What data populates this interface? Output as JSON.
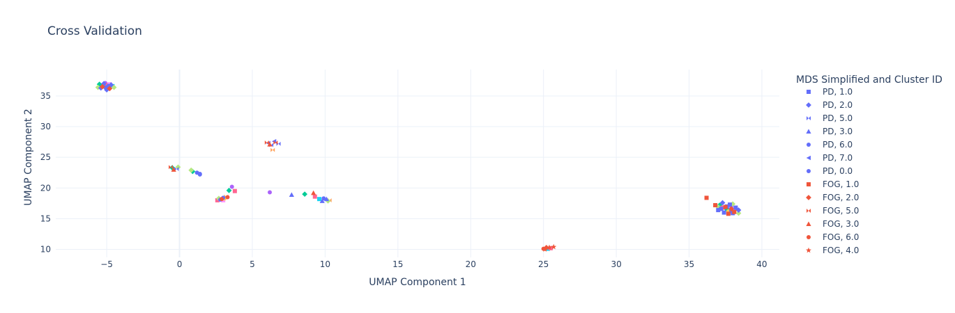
{
  "chart_data": {
    "type": "scatter",
    "title": "Cross Validation",
    "xlabel": "UMAP Component 1",
    "ylabel": "UMAP Component 2",
    "xlim": [
      -8.5,
      41.2
    ],
    "ylim": [
      8.7,
      39.3
    ],
    "xticks": [
      -5,
      0,
      5,
      10,
      15,
      20,
      25,
      30,
      35,
      40
    ],
    "yticks": [
      10,
      15,
      20,
      25,
      30,
      35
    ],
    "grid": true,
    "legend_title": "MDS Simplified and Cluster ID",
    "legend_position": "right",
    "series": [
      {
        "name": "PD, 1.0",
        "color": "#636efa",
        "symbol": "square",
        "points": [
          [
            37.2,
            16.6
          ],
          [
            37.6,
            17.0
          ],
          [
            37.9,
            16.2
          ],
          [
            38.2,
            16.8
          ],
          [
            37.4,
            16.0
          ],
          [
            38.0,
            15.9
          ],
          [
            37.0,
            16.4
          ],
          [
            37.8,
            17.3
          ]
        ]
      },
      {
        "name": "PD, 2.0",
        "color": "#636efa",
        "symbol": "diamond",
        "points": [
          [
            -5.2,
            37.0
          ],
          [
            -4.9,
            36.6
          ],
          [
            -5.4,
            36.3
          ],
          [
            -5.0,
            36.0
          ],
          [
            -4.7,
            36.8
          ],
          [
            38.4,
            16.4
          ],
          [
            37.3,
            17.6
          ]
        ]
      },
      {
        "name": "PD, 5.0",
        "color": "#636efa",
        "symbol": "bowtie",
        "points": [
          [
            -0.2,
            23.1
          ],
          [
            6.8,
            27.2
          ],
          [
            6.3,
            27.0
          ]
        ]
      },
      {
        "name": "PD, 3.0",
        "color": "#636efa",
        "symbol": "triangle-up",
        "points": [
          [
            7.7,
            18.9
          ],
          [
            9.8,
            17.9
          ],
          [
            10.1,
            18.2
          ]
        ]
      },
      {
        "name": "PD, 6.0",
        "color": "#636efa",
        "symbol": "circle",
        "points": [
          [
            1.4,
            22.3
          ],
          [
            2.8,
            18.1
          ],
          [
            3.0,
            18.4
          ],
          [
            9.9,
            18.3
          ]
        ]
      },
      {
        "name": "PD, 7.0",
        "color": "#636efa",
        "symbol": "triangle-left",
        "points": [
          [
            6.1,
            27.3
          ],
          [
            6.5,
            27.6
          ]
        ]
      },
      {
        "name": "PD, 0.0",
        "color": "#636efa",
        "symbol": "circle",
        "points": [
          [
            1.2,
            22.5
          ],
          [
            1.4,
            22.2
          ],
          [
            -5.1,
            36.4
          ]
        ]
      },
      {
        "name": "FOG, 1.0",
        "color": "#EF553B",
        "symbol": "square",
        "points": [
          [
            36.2,
            18.4
          ],
          [
            36.8,
            17.2
          ],
          [
            37.5,
            16.9
          ],
          [
            38.1,
            16.1
          ],
          [
            37.7,
            15.8
          ]
        ]
      },
      {
        "name": "FOG, 2.0",
        "color": "#EF553B",
        "symbol": "diamond",
        "points": [
          [
            -5.3,
            36.5
          ],
          [
            -4.8,
            36.2
          ],
          [
            25.2,
            10.3
          ],
          [
            37.9,
            16.6
          ]
        ]
      },
      {
        "name": "FOG, 5.0",
        "color": "#EF553B",
        "symbol": "bowtie",
        "points": [
          [
            6.0,
            27.4
          ],
          [
            6.6,
            27.4
          ],
          [
            -0.6,
            23.4
          ]
        ]
      },
      {
        "name": "FOG, 3.0",
        "color": "#EF553B",
        "symbol": "triangle-up",
        "points": [
          [
            9.2,
            19.2
          ],
          [
            6.2,
            27.1
          ],
          [
            -0.4,
            23.0
          ]
        ]
      },
      {
        "name": "FOG, 6.0",
        "color": "#EF553B",
        "symbol": "circle",
        "points": [
          [
            2.9,
            18.2
          ],
          [
            3.3,
            18.5
          ],
          [
            25.0,
            10.1
          ]
        ]
      },
      {
        "name": "FOG, 4.0",
        "color": "#EF553B",
        "symbol": "star",
        "points": [
          [
            25.4,
            10.3
          ],
          [
            25.7,
            10.4
          ],
          [
            25.1,
            10.0
          ]
        ]
      }
    ],
    "extra_points": [
      {
        "color": "#00cc96",
        "symbol": "diamond",
        "points": [
          [
            -5.5,
            36.9
          ],
          [
            -5.0,
            36.5
          ],
          [
            -0.5,
            23.3
          ],
          [
            0.9,
            22.7
          ],
          [
            8.6,
            19.0
          ],
          [
            3.4,
            19.6
          ],
          [
            37.1,
            17.2
          ],
          [
            37.6,
            16.5
          ]
        ]
      },
      {
        "color": "#ab63fa",
        "symbol": "circle",
        "points": [
          [
            6.2,
            19.3
          ],
          [
            3.6,
            20.2
          ],
          [
            -5.1,
            37.1
          ],
          [
            37.9,
            16.9
          ]
        ]
      },
      {
        "color": "#FFA15A",
        "symbol": "bowtie",
        "points": [
          [
            6.4,
            26.2
          ],
          [
            3.2,
            18.6
          ],
          [
            10.3,
            18.0
          ],
          [
            38.3,
            16.3
          ]
        ]
      },
      {
        "color": "#19d3f3",
        "symbol": "square",
        "points": [
          [
            25.3,
            10.1
          ],
          [
            -4.6,
            36.6
          ],
          [
            9.6,
            18.2
          ]
        ]
      },
      {
        "color": "#FF6692",
        "symbol": "square",
        "points": [
          [
            37.3,
            16.8
          ],
          [
            -5.0,
            36.8
          ],
          [
            25.5,
            10.2
          ],
          [
            2.6,
            18.0
          ],
          [
            9.3,
            18.6
          ],
          [
            3.8,
            19.5
          ]
        ]
      },
      {
        "color": "#B6E880",
        "symbol": "diamond",
        "points": [
          [
            -5.6,
            36.4
          ],
          [
            -4.5,
            36.4
          ],
          [
            -0.1,
            23.4
          ],
          [
            0.8,
            22.9
          ],
          [
            2.7,
            18.3
          ],
          [
            10.2,
            17.9
          ],
          [
            37.0,
            16.9
          ],
          [
            38.0,
            17.4
          ],
          [
            38.4,
            15.9
          ]
        ]
      },
      {
        "color": "#FF97FF",
        "symbol": "square",
        "points": [
          [
            38.2,
            16.7
          ],
          [
            -4.8,
            36.9
          ],
          [
            3.0,
            18.0
          ]
        ]
      },
      {
        "color": "#FECB52",
        "symbol": "circle",
        "points": [
          [
            3.1,
            18.3
          ],
          [
            37.7,
            16.2
          ]
        ]
      }
    ]
  }
}
